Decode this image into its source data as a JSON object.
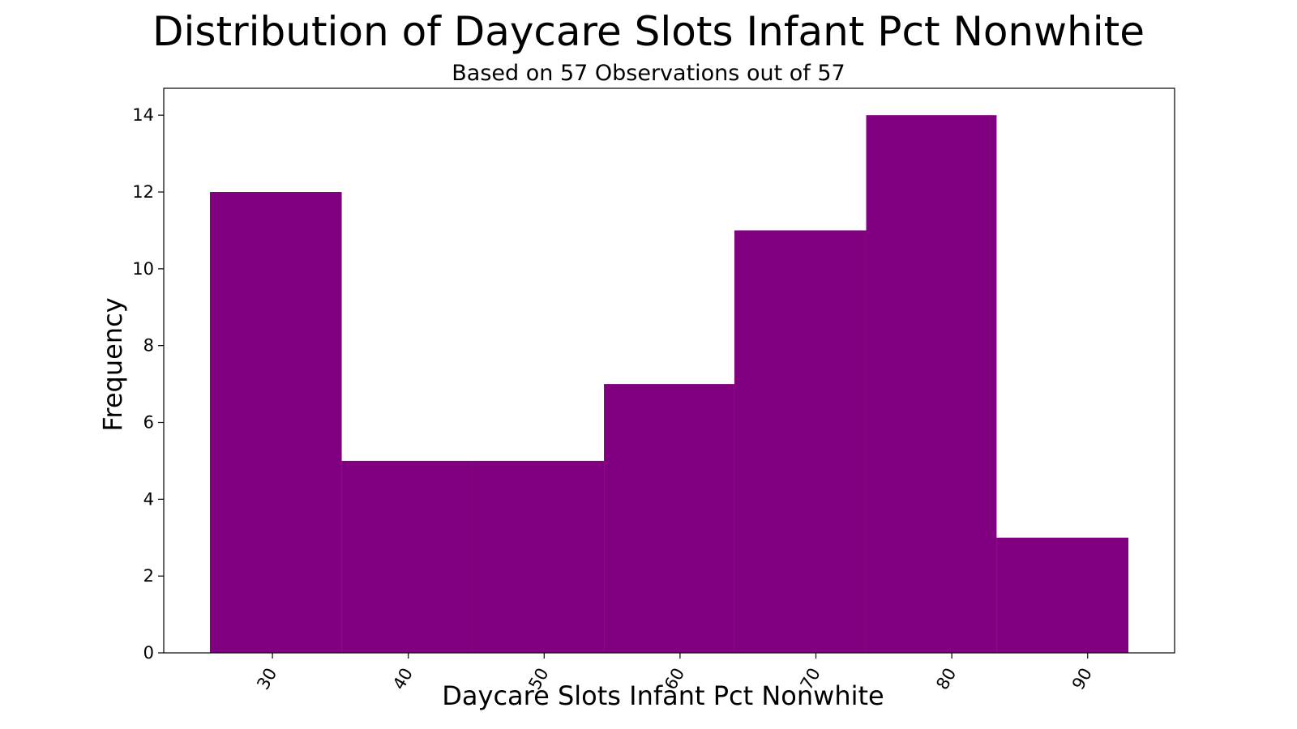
{
  "chart_data": {
    "type": "bar",
    "title": "Distribution of Daycare Slots Infant Pct Nonwhite",
    "subtitle": "Based on 57 Observations out of 57",
    "xlabel": "Daycare Slots Infant Pct Nonwhite",
    "ylabel": "Frequency",
    "bins": [
      {
        "start": 25.4,
        "end": 35.1,
        "count": 12
      },
      {
        "start": 35.1,
        "end": 44.7,
        "count": 5
      },
      {
        "start": 44.7,
        "end": 54.4,
        "count": 5
      },
      {
        "start": 54.4,
        "end": 64.0,
        "count": 7
      },
      {
        "start": 64.0,
        "end": 73.7,
        "count": 11
      },
      {
        "start": 73.7,
        "end": 83.3,
        "count": 14
      },
      {
        "start": 83.3,
        "end": 93.0,
        "count": 3
      }
    ],
    "xlim": [
      22.0,
      96.4
    ],
    "ylim": [
      0,
      14.7
    ],
    "xticks": [
      "30",
      "40",
      "50",
      "60",
      "70",
      "80",
      "90"
    ],
    "yticks": [
      "0",
      "2",
      "4",
      "6",
      "8",
      "10",
      "12",
      "14"
    ],
    "bar_color": "#800080",
    "grid": false,
    "legend": false
  }
}
